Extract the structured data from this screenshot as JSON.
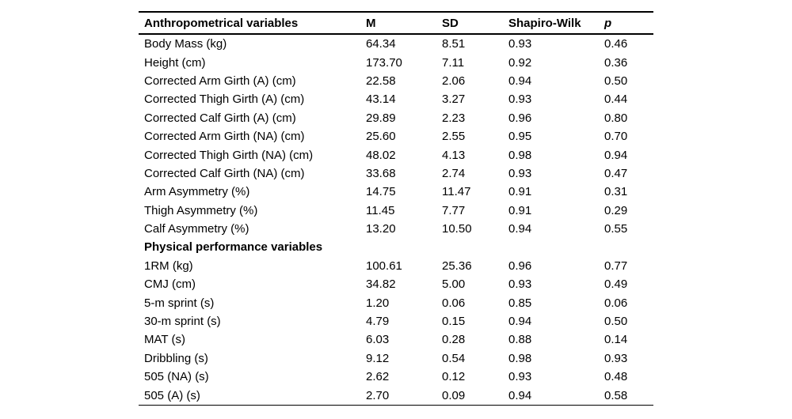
{
  "table": {
    "columns": [
      "Anthropometrical variables",
      "M",
      "SD",
      "Shapiro-Wilk",
      "p"
    ],
    "rows": [
      {
        "label": "Body Mass (kg)",
        "m": "64.34",
        "sd": "8.51",
        "shapiro_wilk": "0.93",
        "p": "0.46"
      },
      {
        "label": "Height (cm)",
        "m": "173.70",
        "sd": "7.11",
        "shapiro_wilk": "0.92",
        "p": "0.36"
      },
      {
        "label": "Corrected Arm Girth (A) (cm)",
        "m": "22.58",
        "sd": "2.06",
        "shapiro_wilk": "0.94",
        "p": "0.50"
      },
      {
        "label": "Corrected Thigh Girth (A) (cm)",
        "m": "43.14",
        "sd": "3.27",
        "shapiro_wilk": "0.93",
        "p": "0.44"
      },
      {
        "label": "Corrected Calf Girth (A) (cm)",
        "m": "29.89",
        "sd": "2.23",
        "shapiro_wilk": "0.96",
        "p": "0.80"
      },
      {
        "label": "Corrected Arm Girth (NA) (cm)",
        "m": "25.60",
        "sd": "2.55",
        "shapiro_wilk": "0.95",
        "p": "0.70"
      },
      {
        "label": "Corrected Thigh Girth (NA) (cm)",
        "m": "48.02",
        "sd": "4.13",
        "shapiro_wilk": "0.98",
        "p": "0.94"
      },
      {
        "label": "Corrected Calf Girth (NA) (cm)",
        "m": "33.68",
        "sd": "2.74",
        "shapiro_wilk": "0.93",
        "p": "0.47"
      },
      {
        "label": "Arm Asymmetry (%)",
        "m": "14.75",
        "sd": "11.47",
        "shapiro_wilk": "0.91",
        "p": "0.31"
      },
      {
        "label": "Thigh Asymmetry (%)",
        "m": "11.45",
        "sd": "7.77",
        "shapiro_wilk": "0.91",
        "p": "0.29"
      },
      {
        "label": "Calf Asymmetry (%)",
        "m": "13.20",
        "sd": "10.50",
        "shapiro_wilk": "0.94",
        "p": "0.55"
      },
      {
        "label": "Physical performance variables",
        "section": true,
        "m": "",
        "sd": "",
        "shapiro_wilk": "",
        "p": ""
      },
      {
        "label": "1RM (kg)",
        "m": "100.61",
        "sd": "25.36",
        "shapiro_wilk": "0.96",
        "p": "0.77"
      },
      {
        "label": "CMJ (cm)",
        "m": "34.82",
        "sd": "5.00",
        "shapiro_wilk": "0.93",
        "p": "0.49"
      },
      {
        "label": "5-m sprint (s)",
        "m": "1.20",
        "sd": "0.06",
        "shapiro_wilk": "0.85",
        "p": "0.06"
      },
      {
        "label": "30-m sprint (s)",
        "m": "4.79",
        "sd": "0.15",
        "shapiro_wilk": "0.94",
        "p": "0.50"
      },
      {
        "label": "MAT (s)",
        "m": "6.03",
        "sd": "0.28",
        "shapiro_wilk": "0.88",
        "p": "0.14"
      },
      {
        "label": "Dribbling (s)",
        "m": "9.12",
        "sd": "0.54",
        "shapiro_wilk": "0.98",
        "p": "0.93"
      },
      {
        "label": "505 (NA) (s)",
        "m": "2.62",
        "sd": "0.12",
        "shapiro_wilk": "0.93",
        "p": "0.48"
      },
      {
        "label": "505 (A) (s)",
        "m": "2.70",
        "sd": "0.09",
        "shapiro_wilk": "0.94",
        "p": "0.58"
      }
    ]
  }
}
